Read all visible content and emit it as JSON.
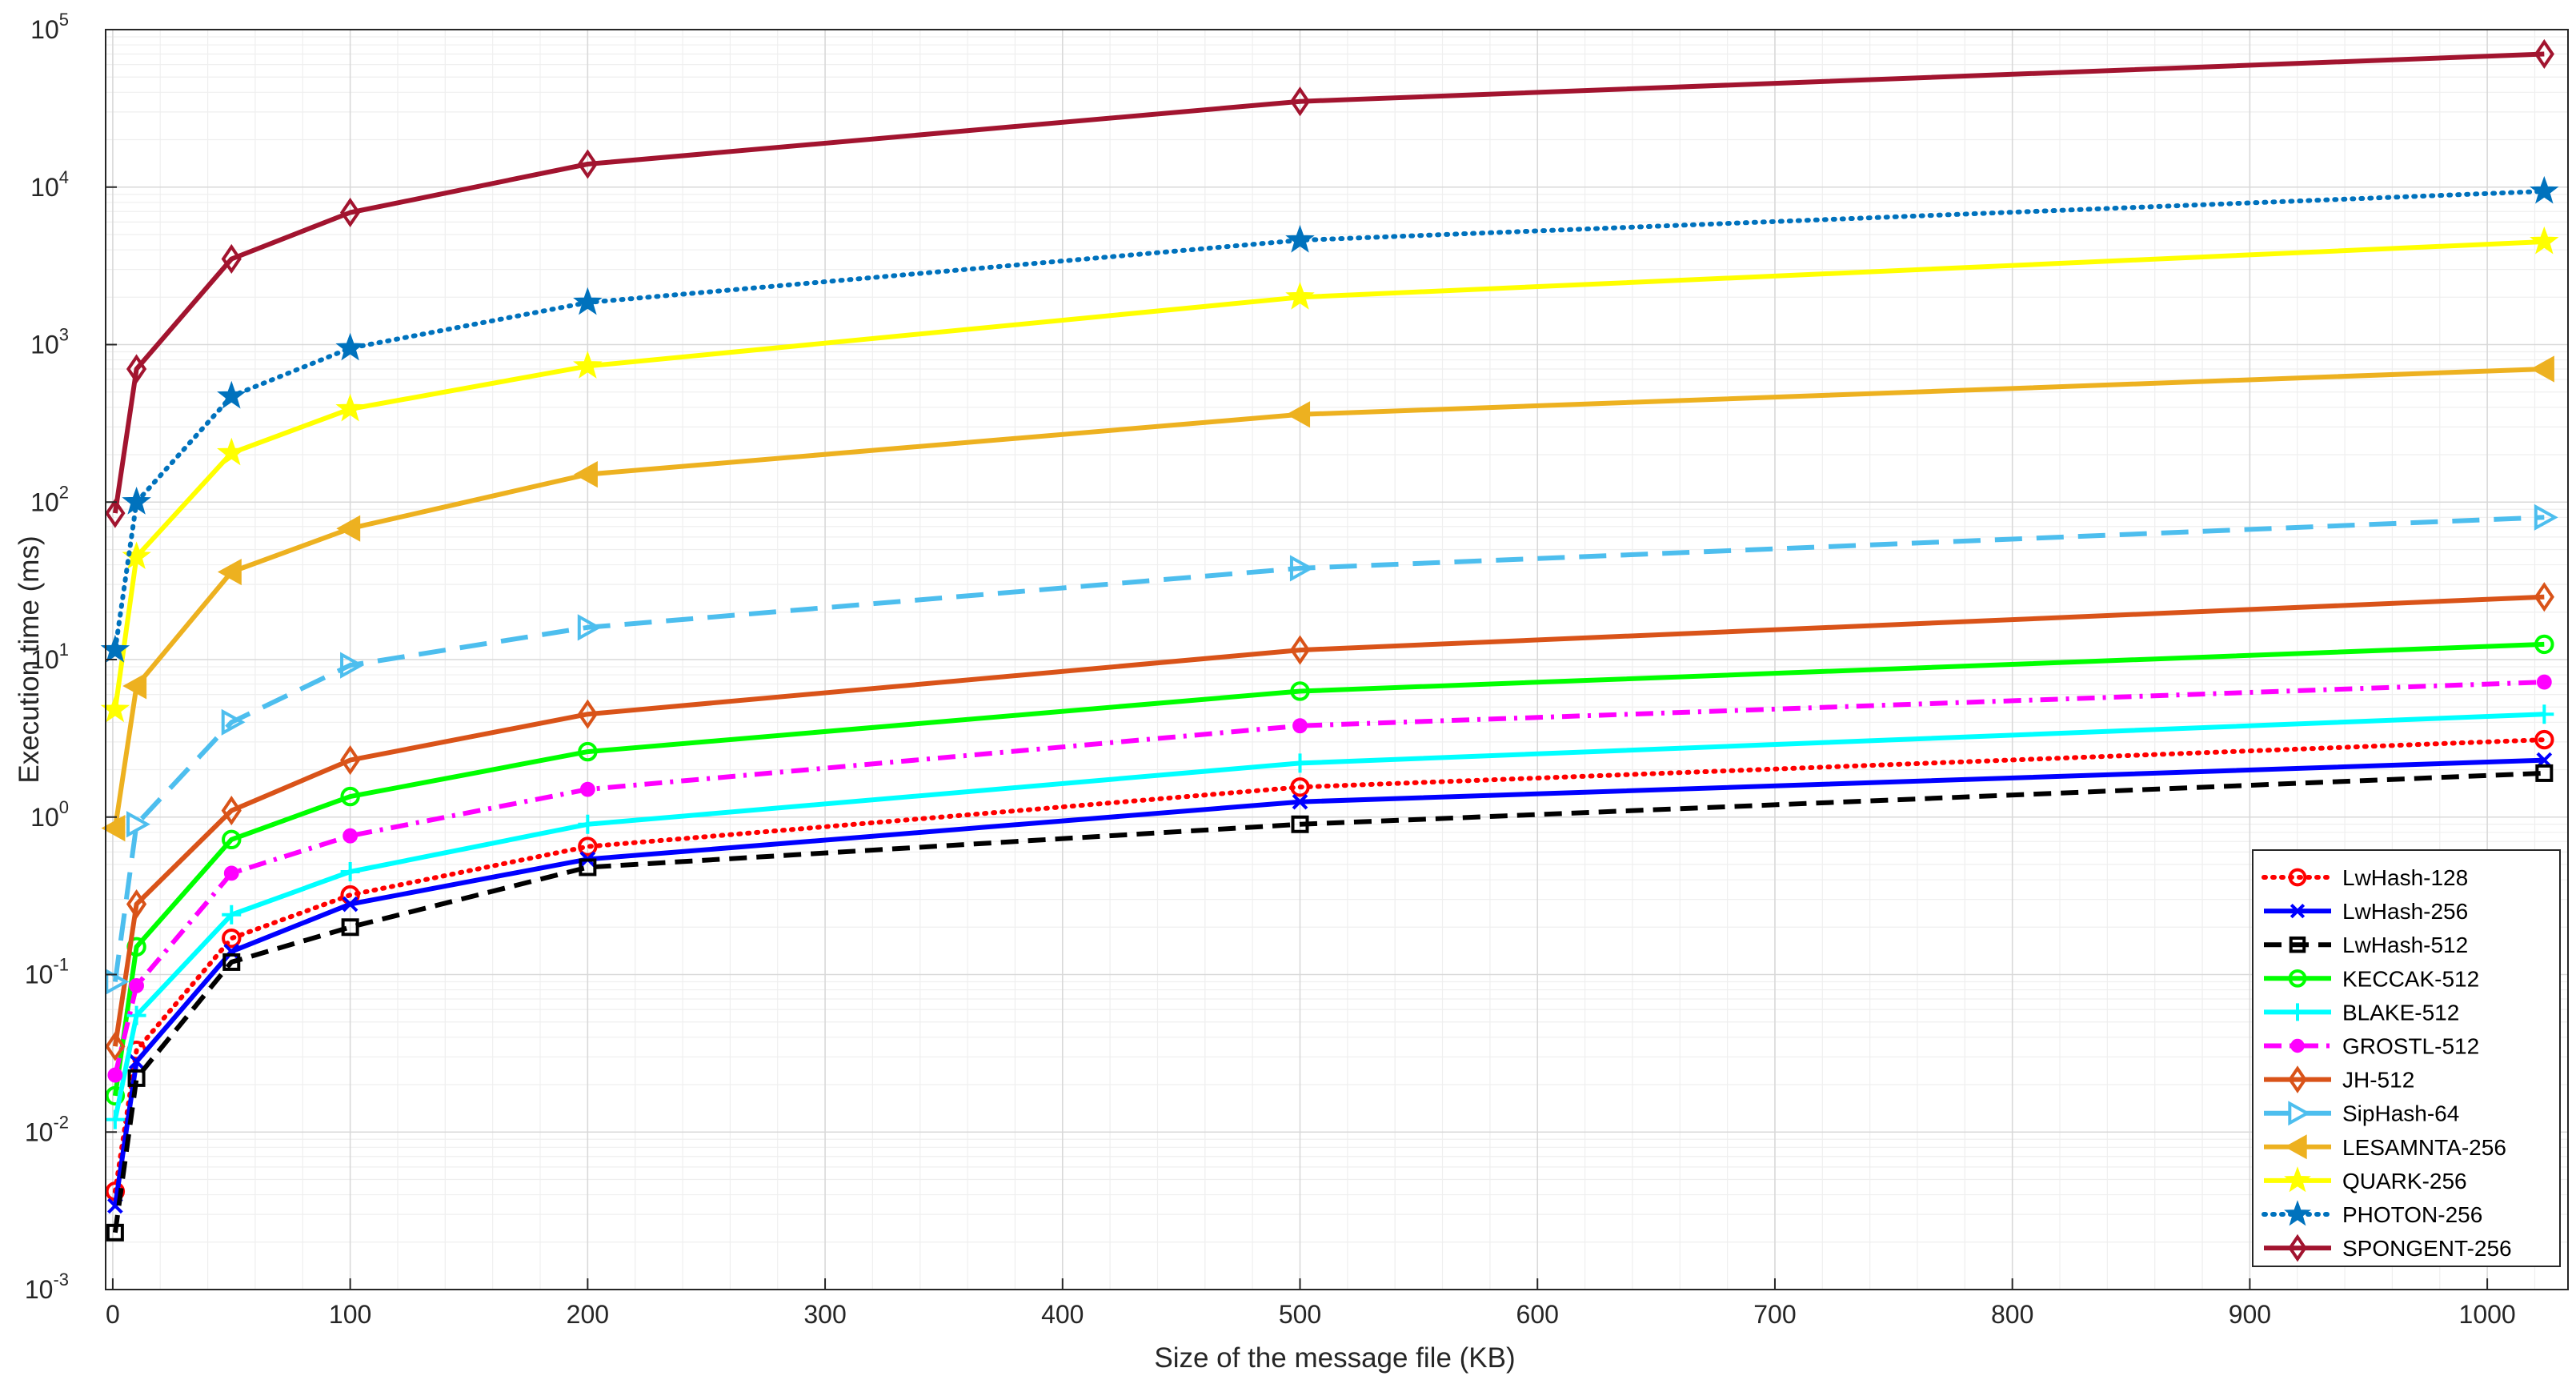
{
  "chart_data": {
    "type": "line",
    "title": "",
    "xlabel": "Size of the message file (KB)",
    "ylabel": "Execution time (ms)",
    "xscale": "linear",
    "yscale": "log",
    "xlim": [
      -3,
      1034
    ],
    "ylim": [
      0.001,
      100000
    ],
    "grid": true,
    "minor_grid": true,
    "legend_position": "bottom-right",
    "x_ticks": [
      0,
      100,
      200,
      300,
      400,
      500,
      600,
      700,
      800,
      900,
      1000
    ],
    "x_tick_labels": [
      "0",
      "100",
      "200",
      "300",
      "400",
      "500",
      "600",
      "700",
      "800",
      "900",
      "1000"
    ],
    "y_ticks": [
      0.001,
      0.01,
      0.1,
      1,
      10,
      100,
      1000,
      10000,
      100000
    ],
    "y_tick_bases": [
      "10",
      "10",
      "10",
      "10",
      "10",
      "10",
      "10",
      "10",
      "10"
    ],
    "y_tick_exponents": [
      "-3",
      "-2",
      "-1",
      "0",
      "1",
      "2",
      "3",
      "4",
      "5"
    ],
    "x": [
      1,
      10,
      50,
      100,
      200,
      500,
      1024
    ],
    "series": [
      {
        "name": "LwHash-128",
        "color": "#ff0000",
        "dash": "dotted",
        "marker": "circle",
        "values": [
          0.0042,
          0.033,
          0.17,
          0.32,
          0.65,
          1.55,
          3.1
        ]
      },
      {
        "name": "LwHash-256",
        "color": "#0000ff",
        "dash": "solid",
        "marker": "x",
        "values": [
          0.0034,
          0.028,
          0.14,
          0.28,
          0.54,
          1.25,
          2.3
        ]
      },
      {
        "name": "LwHash-512",
        "color": "#000000",
        "dash": "dashed",
        "marker": "square",
        "values": [
          0.0023,
          0.022,
          0.12,
          0.2,
          0.48,
          0.9,
          1.9
        ]
      },
      {
        "name": "KECCAK-512",
        "color": "#00ff00",
        "dash": "solid",
        "marker": "circle",
        "values": [
          0.017,
          0.15,
          0.72,
          1.35,
          2.6,
          6.3,
          12.5
        ]
      },
      {
        "name": "BLAKE-512",
        "color": "#00ffff",
        "dash": "solid",
        "marker": "plus",
        "values": [
          0.012,
          0.055,
          0.24,
          0.45,
          0.9,
          2.2,
          4.5
        ]
      },
      {
        "name": "GROSTL-512",
        "color": "#ff00ff",
        "dash": "dashdot",
        "marker": "dot",
        "values": [
          0.023,
          0.085,
          0.44,
          0.76,
          1.5,
          3.8,
          7.2
        ]
      },
      {
        "name": "JH-512",
        "color": "#d95319",
        "dash": "solid",
        "marker": "diamond",
        "values": [
          0.035,
          0.28,
          1.1,
          2.3,
          4.5,
          11.5,
          25
        ]
      },
      {
        "name": "SipHash-64",
        "color": "#4dbeee",
        "dash": "longdash",
        "marker": "triangle-right",
        "values": [
          0.09,
          0.9,
          4,
          9.2,
          16,
          38,
          80
        ]
      },
      {
        "name": "LESAMNTA-256",
        "color": "#edb120",
        "dash": "solid",
        "marker": "triangle-left",
        "values": [
          0.85,
          6.8,
          36,
          68,
          150,
          360,
          700
        ]
      },
      {
        "name": "QUARK-256",
        "color": "#ffff00",
        "dash": "solid",
        "marker": "star",
        "values": [
          4.8,
          45,
          205,
          390,
          730,
          2000,
          4500
        ]
      },
      {
        "name": "PHOTON-256",
        "color": "#0072bd",
        "dash": "dotted",
        "marker": "star",
        "values": [
          11.5,
          100,
          470,
          950,
          1850,
          4600,
          9400
        ]
      },
      {
        "name": "SPONGENT-256",
        "color": "#a2142f",
        "dash": "solid",
        "marker": "diamond",
        "values": [
          85,
          700,
          3500,
          6900,
          14000,
          35000,
          70000
        ]
      }
    ]
  }
}
